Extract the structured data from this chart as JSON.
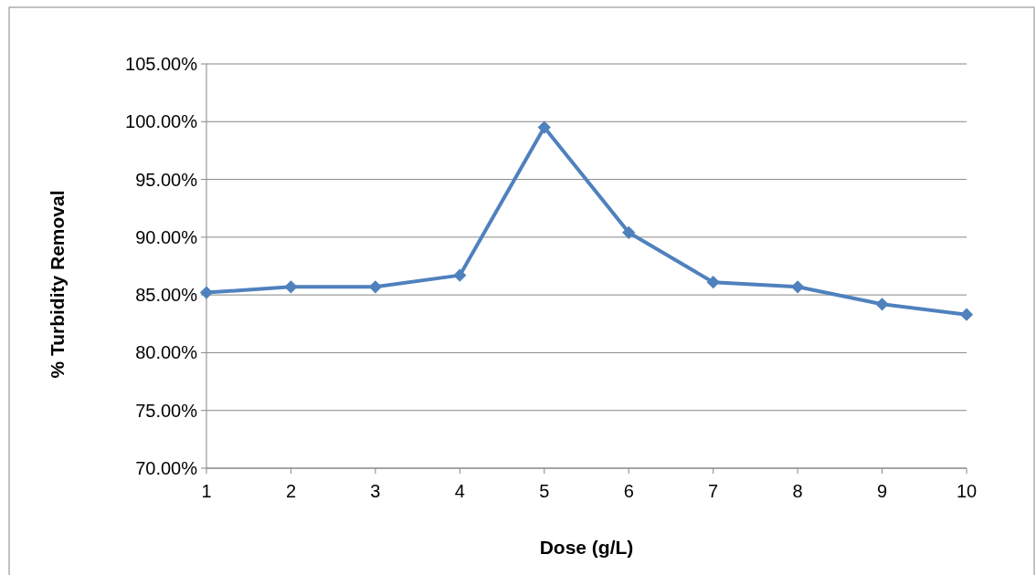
{
  "chart_data": {
    "type": "line",
    "xlabel": "Dose (g/L)",
    "ylabel": "% Turbidity Removal",
    "x": [
      1,
      2,
      3,
      4,
      5,
      6,
      7,
      8,
      9,
      10
    ],
    "series": [
      {
        "color": "#4f81bd",
        "values": [
          85.2,
          85.7,
          85.7,
          86.7,
          99.5,
          90.4,
          86.1,
          85.7,
          84.2,
          83.3
        ]
      }
    ],
    "xlim": [
      1,
      10
    ],
    "xticks": [
      1,
      2,
      3,
      4,
      5,
      6,
      7,
      8,
      9,
      10
    ],
    "ylim": [
      70,
      105
    ],
    "yticks": [
      {
        "value": 70,
        "label": "70.00%"
      },
      {
        "value": 75,
        "label": "75.00%"
      },
      {
        "value": 80,
        "label": "80.00%"
      },
      {
        "value": 85,
        "label": "85.00%"
      },
      {
        "value": 90,
        "label": "90.00%"
      },
      {
        "value": 95,
        "label": "95.00%"
      },
      {
        "value": 100,
        "label": "100.00%"
      },
      {
        "value": 105,
        "label": "105.00%"
      }
    ],
    "grid": "y",
    "marker": "diamond",
    "line_style": "solid"
  }
}
